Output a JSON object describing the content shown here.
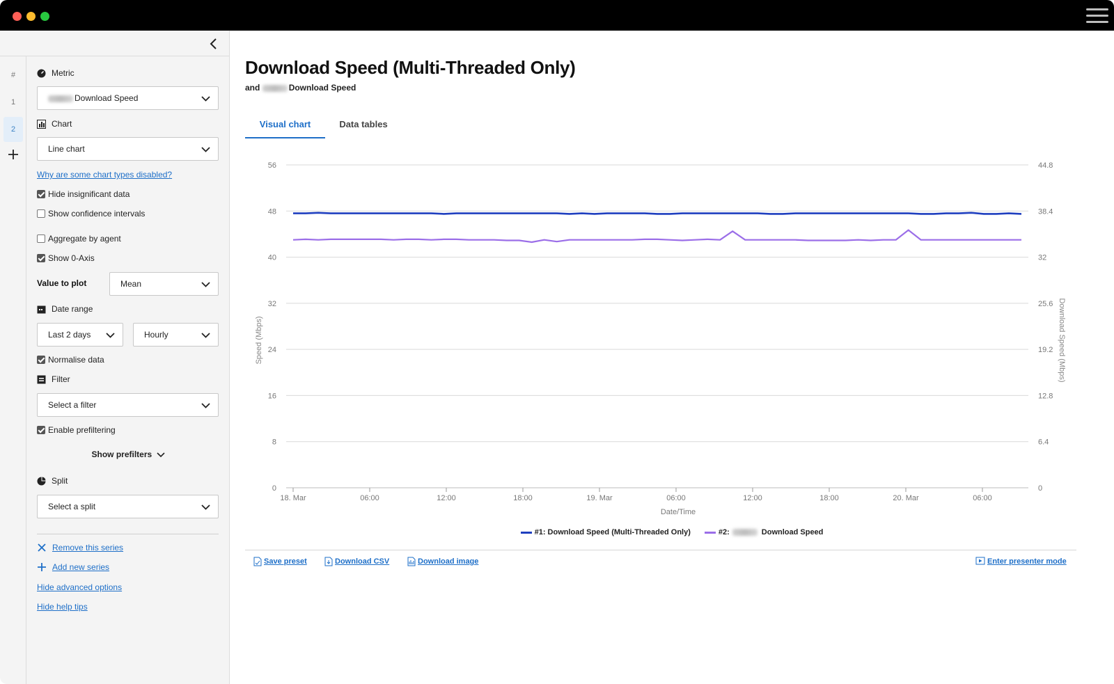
{
  "window": {
    "controls": [
      "close",
      "minimize",
      "maximize"
    ]
  },
  "rail": {
    "header": "#",
    "items": [
      {
        "label": "1",
        "active": false
      },
      {
        "label": "2",
        "active": true
      }
    ],
    "add_icon": "plus-icon"
  },
  "sidebar": {
    "metric": {
      "label": "Metric",
      "value": "Download Speed"
    },
    "chart": {
      "label": "Chart",
      "value": "Line chart"
    },
    "disabled_link": "Why are some chart types disabled?",
    "checkboxes": {
      "hide_insignificant": {
        "label": "Hide insignificant data",
        "checked": true
      },
      "show_confidence": {
        "label": "Show confidence intervals",
        "checked": false
      },
      "aggregate_agent": {
        "label": "Aggregate by agent",
        "checked": false
      },
      "show_zero_axis": {
        "label": "Show 0-Axis",
        "checked": true
      },
      "normalise": {
        "label": "Normalise data",
        "checked": true
      },
      "prefiltering": {
        "label": "Enable prefiltering",
        "checked": true
      }
    },
    "value_to_plot": {
      "label": "Value to plot",
      "value": "Mean"
    },
    "date_range": {
      "label": "Date range",
      "range": "Last 2 days",
      "interval": "Hourly"
    },
    "filter": {
      "label": "Filter",
      "placeholder": "Select a filter"
    },
    "show_prefilters": "Show prefilters",
    "split": {
      "label": "Split",
      "placeholder": "Select a split"
    },
    "actions": {
      "remove_series": "Remove this series",
      "add_series": "Add new series",
      "hide_advanced": "Hide advanced options",
      "hide_help": "Hide help tips"
    }
  },
  "main": {
    "title": "Download Speed (Multi-Threaded Only)",
    "subtitle_prefix": "and",
    "subtitle_suffix": "Download Speed",
    "tabs": [
      {
        "label": "Visual chart",
        "active": true
      },
      {
        "label": "Data tables",
        "active": false
      }
    ],
    "legend": [
      {
        "label": "#1: Download Speed (Multi-Threaded Only)",
        "color": "#1f3fbf"
      },
      {
        "label_prefix": "#2:",
        "label_suffix": "Download Speed",
        "color": "#9b6ee8"
      }
    ],
    "footer": {
      "save_preset": "Save preset",
      "download_csv": "Download CSV",
      "download_image": "Download image",
      "presenter_mode": "Enter presenter mode"
    }
  },
  "chart_data": {
    "type": "line",
    "xlabel": "Date/Time",
    "ylabel": "Speed (Mbps)",
    "y2label": "Download Speed (Mbps)",
    "x_ticks": [
      "18. Mar",
      "06:00",
      "12:00",
      "18:00",
      "19. Mar",
      "06:00",
      "12:00",
      "18:00",
      "20. Mar",
      "06:00"
    ],
    "ylim": [
      0,
      56
    ],
    "y_ticks": [
      0,
      8,
      16,
      24,
      32,
      40,
      48,
      56
    ],
    "y2lim": [
      0,
      44.8
    ],
    "y2_ticks": [
      "0",
      "6.4",
      "12.8",
      "19.2",
      "25.6",
      "32",
      "38.4",
      "44.8"
    ],
    "grid": true,
    "legend_position": "bottom-center",
    "series": [
      {
        "name": "#1: Download Speed (Multi-Threaded Only)",
        "axis": "left",
        "color": "#1f3fbf",
        "values": [
          47.6,
          47.6,
          47.7,
          47.6,
          47.6,
          47.6,
          47.6,
          47.6,
          47.6,
          47.6,
          47.6,
          47.6,
          47.5,
          47.6,
          47.6,
          47.6,
          47.6,
          47.6,
          47.6,
          47.6,
          47.6,
          47.6,
          47.5,
          47.6,
          47.5,
          47.6,
          47.6,
          47.6,
          47.6,
          47.5,
          47.5,
          47.6,
          47.6,
          47.6,
          47.6,
          47.6,
          47.6,
          47.6,
          47.5,
          47.5,
          47.6,
          47.6,
          47.6,
          47.6,
          47.6,
          47.6,
          47.6,
          47.6,
          47.6,
          47.6,
          47.5,
          47.5,
          47.6,
          47.6,
          47.7,
          47.5,
          47.5,
          47.6,
          47.5
        ]
      },
      {
        "name": "#2: Download Speed",
        "axis": "left",
        "color": "#9b6ee8",
        "values": [
          43.0,
          43.1,
          43.0,
          43.1,
          43.1,
          43.1,
          43.1,
          43.1,
          43.0,
          43.1,
          43.1,
          43.0,
          43.1,
          43.1,
          43.0,
          43.0,
          43.0,
          42.9,
          42.9,
          42.6,
          43.0,
          42.7,
          43.0,
          43.0,
          43.0,
          43.0,
          43.0,
          43.0,
          43.1,
          43.1,
          43.0,
          42.9,
          43.0,
          43.1,
          43.0,
          44.5,
          43.0,
          43.0,
          43.0,
          43.0,
          43.0,
          42.9,
          42.9,
          42.9,
          42.9,
          43.0,
          42.9,
          43.0,
          43.0,
          44.7,
          43.0,
          43.0,
          43.0,
          43.0,
          43.0,
          43.0,
          43.0,
          43.0,
          43.0
        ]
      }
    ]
  }
}
